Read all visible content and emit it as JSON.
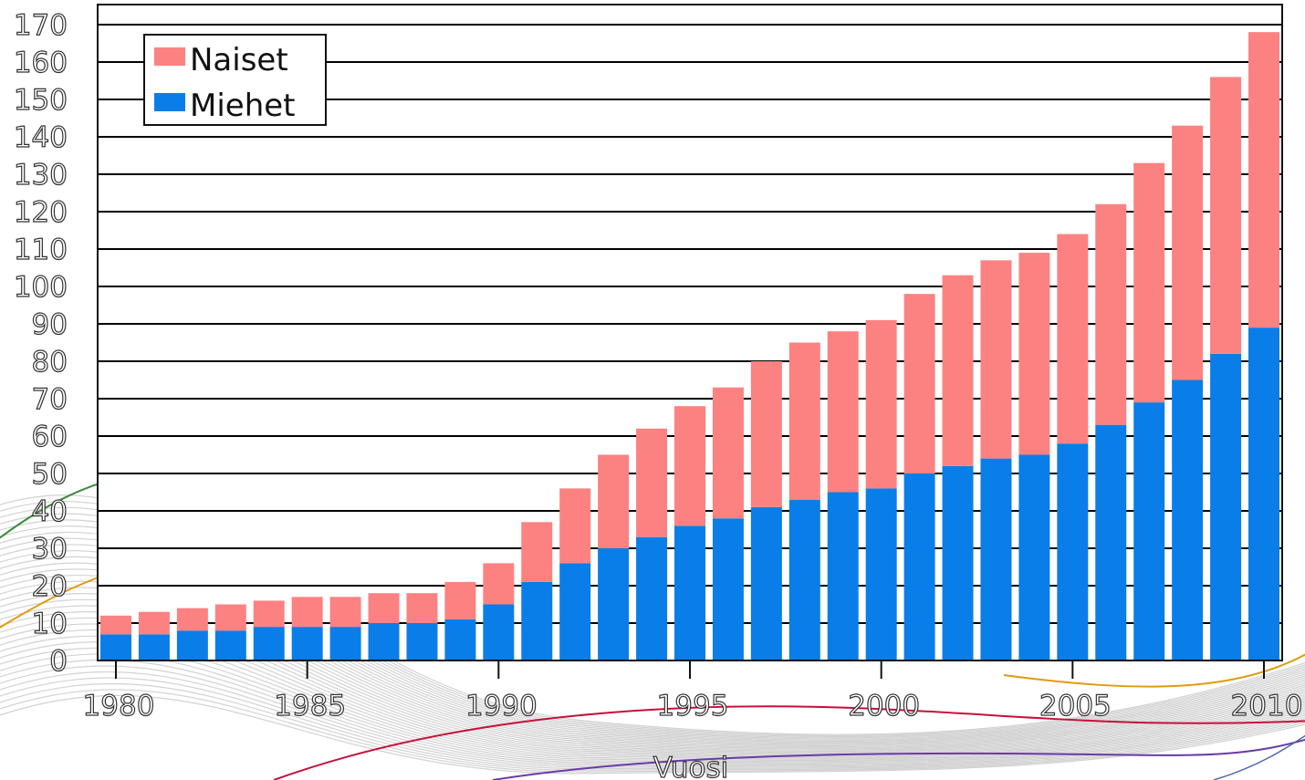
{
  "chart_data": {
    "type": "bar",
    "stacked": true,
    "xlabel": "Vuosi",
    "ylabel": "",
    "ylim": [
      0,
      170
    ],
    "yticks": [
      0,
      10,
      20,
      30,
      40,
      50,
      60,
      70,
      80,
      90,
      100,
      110,
      120,
      130,
      140,
      150,
      160,
      170
    ],
    "xticks": [
      1980,
      1985,
      1990,
      1995,
      2000,
      2005,
      2010
    ],
    "grid": true,
    "legend_position": "top-left",
    "categories": [
      1980,
      1981,
      1982,
      1983,
      1984,
      1985,
      1986,
      1987,
      1988,
      1989,
      1990,
      1991,
      1992,
      1993,
      1994,
      1995,
      1996,
      1997,
      1998,
      1999,
      2000,
      2001,
      2002,
      2003,
      2004,
      2005,
      2006,
      2007,
      2008,
      2009,
      2010
    ],
    "series": [
      {
        "name": "Miehet",
        "color": "#0a7ee8",
        "values": [
          7,
          7,
          8,
          8,
          9,
          9,
          9,
          10,
          10,
          11,
          15,
          21,
          26,
          30,
          33,
          36,
          38,
          41,
          43,
          45,
          46,
          50,
          52,
          54,
          55,
          58,
          63,
          69,
          75,
          82,
          89
        ]
      },
      {
        "name": "Naiset",
        "color": "#fc8282",
        "values": [
          5,
          6,
          6,
          7,
          7,
          8,
          8,
          8,
          8,
          10,
          11,
          16,
          20,
          25,
          29,
          32,
          35,
          39,
          42,
          43,
          45,
          48,
          51,
          53,
          54,
          56,
          59,
          64,
          68,
          74,
          79
        ]
      }
    ]
  }
}
